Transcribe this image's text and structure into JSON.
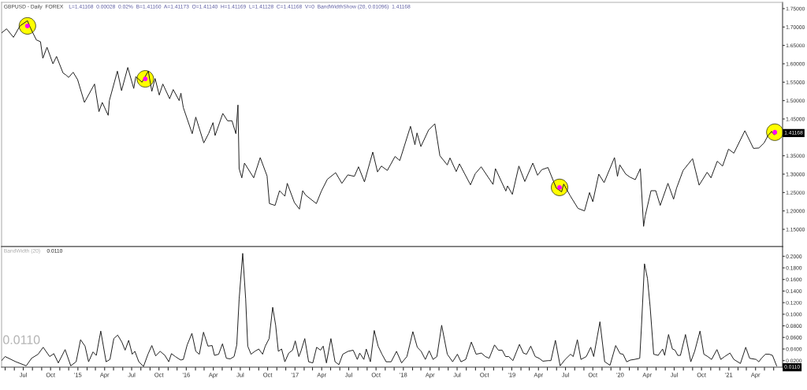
{
  "chart_data": [
    {
      "type": "line",
      "title": "GBPUSD - Daily  FOREX",
      "subtitle": "L=1.41168  0.00028  0.02%  B=1.41160  A=1.41173  O=1.41140  H=1.41169  L=1.41128  C=1.41168  V=0  BandWidthShow (20, 0.01096)  1.41168",
      "series": [
        {
          "color": "#1a1a1a",
          "x": [
            "2014-04-19",
            "2014-05-06",
            "2014-05-29",
            "2014-06-20",
            "2014-07-15",
            "2014-07-25",
            "2014-08-14",
            "2014-08-28",
            "2014-09-05",
            "2014-09-19",
            "2014-10-09",
            "2014-10-21",
            "2014-11-12",
            "2014-11-21",
            "2014-12-01",
            "2014-12-16",
            "2014-12-31",
            "2015-01-23",
            "2015-02-26",
            "2015-03-13",
            "2015-03-24",
            "2015-04-13",
            "2015-04-17",
            "2015-05-14",
            "2015-05-28",
            "2015-06-18",
            "2015-07-08",
            "2015-07-15",
            "2015-08-05",
            "2015-08-26",
            "2015-09-07",
            "2015-09-18",
            "2015-10-02",
            "2015-10-14",
            "2015-11-06",
            "2015-11-18",
            "2015-12-08",
            "2015-12-14",
            "2015-12-22",
            "2016-01-21",
            "2016-02-02",
            "2016-02-29",
            "2016-03-16",
            "2016-03-31",
            "2016-04-07",
            "2016-05-03",
            "2016-05-19",
            "2016-06-03",
            "2016-06-16",
            "2016-06-23",
            "2016-06-27",
            "2016-07-06",
            "2016-07-15",
            "2016-08-15",
            "2016-09-06",
            "2016-09-29",
            "2016-10-07",
            "2016-10-26",
            "2016-11-10",
            "2016-11-28",
            "2016-12-06",
            "2016-12-30",
            "2017-01-16",
            "2017-01-27",
            "2017-02-06",
            "2017-03-14",
            "2017-03-31",
            "2017-04-20",
            "2017-05-18",
            "2017-06-08",
            "2017-06-28",
            "2017-07-20",
            "2017-08-03",
            "2017-08-23",
            "2017-09-20",
            "2017-10-06",
            "2017-10-19",
            "2017-11-08",
            "2017-12-04",
            "2017-12-20",
            "2018-01-25",
            "2018-02-09",
            "2018-02-16",
            "2018-03-01",
            "2018-03-27",
            "2018-04-17",
            "2018-05-04",
            "2018-05-29",
            "2018-06-07",
            "2018-06-28",
            "2018-07-09",
            "2018-08-15",
            "2018-08-31",
            "2018-09-20",
            "2018-10-30",
            "2018-11-07",
            "2018-12-12",
            "2018-12-18",
            "2019-01-03",
            "2019-01-25",
            "2019-02-14",
            "2019-03-13",
            "2019-03-29",
            "2019-04-12",
            "2019-05-03",
            "2019-05-31",
            "2019-06-18",
            "2019-06-25",
            "2019-07-17",
            "2019-08-12",
            "2019-09-03",
            "2019-09-20",
            "2019-10-01",
            "2019-10-21",
            "2019-11-08",
            "2019-12-13",
            "2019-12-23",
            "2019-12-31",
            "2020-01-20",
            "2020-02-03",
            "2020-02-21",
            "2020-03-09",
            "2020-03-20",
            "2020-03-25",
            "2020-04-14",
            "2020-04-30",
            "2020-05-15",
            "2020-06-10",
            "2020-06-29",
            "2020-07-09",
            "2020-07-31",
            "2020-09-01",
            "2020-09-23",
            "2020-10-20",
            "2020-11-02",
            "2020-11-23",
            "2020-12-11",
            "2020-12-31",
            "2021-01-18",
            "2021-02-24",
            "2021-03-25",
            "2021-04-12",
            "2021-04-30",
            "2021-05-13",
            "2021-05-25",
            "2021-06-03",
            "2021-06-11"
          ],
          "values": [
            1.684,
            1.695,
            1.672,
            1.703,
            1.717,
            1.698,
            1.665,
            1.66,
            1.615,
            1.645,
            1.6,
            1.62,
            1.575,
            1.57,
            1.563,
            1.577,
            1.557,
            1.495,
            1.545,
            1.47,
            1.495,
            1.46,
            1.5,
            1.58,
            1.527,
            1.59,
            1.533,
            1.565,
            1.55,
            1.58,
            1.525,
            1.56,
            1.515,
            1.545,
            1.505,
            1.53,
            1.5,
            1.52,
            1.481,
            1.41,
            1.455,
            1.385,
            1.41,
            1.44,
            1.405,
            1.465,
            1.445,
            1.445,
            1.41,
            1.488,
            1.315,
            1.29,
            1.33,
            1.29,
            1.345,
            1.295,
            1.22,
            1.215,
            1.255,
            1.24,
            1.275,
            1.223,
            1.205,
            1.255,
            1.243,
            1.22,
            1.254,
            1.286,
            1.304,
            1.275,
            1.298,
            1.294,
            1.32,
            1.279,
            1.36,
            1.306,
            1.322,
            1.31,
            1.348,
            1.337,
            1.43,
            1.38,
            1.412,
            1.375,
            1.42,
            1.437,
            1.35,
            1.325,
            1.344,
            1.307,
            1.328,
            1.271,
            1.301,
            1.32,
            1.272,
            1.315,
            1.254,
            1.268,
            1.245,
            1.322,
            1.28,
            1.33,
            1.297,
            1.312,
            1.318,
            1.262,
            1.252,
            1.273,
            1.241,
            1.207,
            1.2,
            1.25,
            1.225,
            1.3,
            1.277,
            1.345,
            1.294,
            1.325,
            1.3,
            1.292,
            1.285,
            1.315,
            1.158,
            1.185,
            1.255,
            1.255,
            1.215,
            1.275,
            1.232,
            1.262,
            1.31,
            1.342,
            1.27,
            1.305,
            1.29,
            1.335,
            1.322,
            1.368,
            1.357,
            1.418,
            1.37,
            1.371,
            1.385,
            1.405,
            1.416,
            1.407,
            1.41168
          ]
        },
        {
          "type": "scatter",
          "color": "#ffff00",
          "marker": "circle",
          "x": [
            "2014-07-15",
            "2015-08-16",
            "2019-06-11",
            "2021-06-05"
          ],
          "values": [
            1.703,
            1.559,
            1.264,
            1.414
          ]
        },
        {
          "type": "scatter",
          "color": "#ff00ff",
          "marker": "circle",
          "x": [
            "2014-07-15",
            "2015-08-16",
            "2019-06-11",
            "2021-06-05"
          ],
          "values": [
            1.703,
            1.559,
            1.264,
            1.414
          ]
        }
      ],
      "xlim": [
        "2014-04-19",
        "2021-07-01"
      ],
      "ylim": [
        1.103,
        1.767
      ],
      "yticks": [
        {
          "value": 1.15,
          "label": "1.15000"
        },
        {
          "value": 1.2,
          "label": "1.20000"
        },
        {
          "value": 1.25,
          "label": "1.25000"
        },
        {
          "value": 1.3,
          "label": "1.30000"
        },
        {
          "value": 1.35,
          "label": "1.35000"
        },
        {
          "value": 1.45,
          "label": "1.45000"
        },
        {
          "value": 1.5,
          "label": "1.50000"
        },
        {
          "value": 1.55,
          "label": "1.55000"
        },
        {
          "value": 1.6,
          "label": "1.60000"
        },
        {
          "value": 1.65,
          "label": "1.65000"
        },
        {
          "value": 1.7,
          "label": "1.70000"
        },
        {
          "value": 1.75,
          "label": "1.75000"
        }
      ],
      "tick_labels": "y",
      "annotations": [
        {
          "text": "1.41168",
          "x": "2021-06-11",
          "y": 1.41168
        }
      ]
    },
    {
      "type": "line",
      "title": "BandWidth (20)",
      "series": [
        {
          "color": "#1a1a1a",
          "x": [
            "2014-04-19",
            "2014-05-01",
            "2014-06-06",
            "2014-07-11",
            "2014-07-29",
            "2014-08-20",
            "2014-09-06",
            "2014-09-28",
            "2014-10-12",
            "2014-10-27",
            "2014-11-19",
            "2014-12-08",
            "2014-12-26",
            "2015-01-10",
            "2015-01-25",
            "2015-02-06",
            "2015-02-21",
            "2015-03-04",
            "2015-03-19",
            "2015-04-06",
            "2015-04-19",
            "2015-05-02",
            "2015-05-15",
            "2015-05-29",
            "2015-06-09",
            "2015-06-21",
            "2015-07-03",
            "2015-07-12",
            "2015-07-25",
            "2015-08-10",
            "2015-08-25",
            "2015-09-07",
            "2015-09-20",
            "2015-10-05",
            "2015-10-21",
            "2015-11-03",
            "2015-11-12",
            "2015-11-25",
            "2015-12-13",
            "2015-12-22",
            "2016-01-04",
            "2016-01-20",
            "2016-02-02",
            "2016-02-14",
            "2016-02-28",
            "2016-03-14",
            "2016-03-28",
            "2016-04-05",
            "2016-04-19",
            "2016-05-02",
            "2016-05-15",
            "2016-05-28",
            "2016-06-10",
            "2016-06-19",
            "2016-06-27",
            "2016-07-09",
            "2016-07-19",
            "2016-07-26",
            "2016-08-06",
            "2016-08-19",
            "2016-09-01",
            "2016-09-14",
            "2016-09-23",
            "2016-10-06",
            "2016-10-18",
            "2016-10-28",
            "2016-11-06",
            "2016-11-17",
            "2016-11-28",
            "2016-12-11",
            "2016-12-24",
            "2017-01-02",
            "2017-01-14",
            "2017-01-21",
            "2017-02-03",
            "2017-02-16",
            "2017-03-02",
            "2017-03-15",
            "2017-03-28",
            "2017-04-06",
            "2017-04-17",
            "2017-05-02",
            "2017-05-16",
            "2017-05-29",
            "2017-06-11",
            "2017-06-29",
            "2017-07-16",
            "2017-07-30",
            "2017-08-07",
            "2017-08-21",
            "2017-08-29",
            "2017-09-12",
            "2017-09-25",
            "2017-10-08",
            "2017-10-21",
            "2017-11-04",
            "2017-11-21",
            "2017-12-09",
            "2017-12-26",
            "2018-01-13",
            "2018-02-02",
            "2018-02-17",
            "2018-03-02",
            "2018-03-16",
            "2018-03-29",
            "2018-04-11",
            "2018-04-24",
            "2018-05-10",
            "2018-05-29",
            "2018-06-16",
            "2018-07-02",
            "2018-07-14",
            "2018-07-30",
            "2018-08-18",
            "2018-09-03",
            "2018-09-21",
            "2018-10-04",
            "2018-10-17",
            "2018-11-04",
            "2018-11-17",
            "2018-11-30",
            "2018-12-11",
            "2018-12-22",
            "2019-01-05",
            "2019-01-27",
            "2019-02-09",
            "2019-02-20",
            "2019-03-06",
            "2019-03-21",
            "2019-04-03",
            "2019-04-16",
            "2019-05-04",
            "2019-05-13",
            "2019-05-28",
            "2019-06-13",
            "2019-06-30",
            "2019-07-18",
            "2019-07-27",
            "2019-08-10",
            "2019-08-22",
            "2019-09-09",
            "2019-09-24",
            "2019-10-04",
            "2019-10-25",
            "2019-11-10",
            "2019-11-28",
            "2019-12-17",
            "2020-01-01",
            "2020-01-11",
            "2020-01-23",
            "2020-02-05",
            "2020-02-18",
            "2020-03-07",
            "2020-03-13",
            "2020-03-23",
            "2020-04-02",
            "2020-04-11",
            "2020-04-23",
            "2020-05-08",
            "2020-05-23",
            "2020-05-30",
            "2020-06-12",
            "2020-06-25",
            "2020-07-04",
            "2020-07-13",
            "2020-07-22",
            "2020-08-08",
            "2020-08-26",
            "2020-09-08",
            "2020-09-26",
            "2020-10-09",
            "2020-10-22",
            "2020-11-04",
            "2020-11-22",
            "2020-12-05",
            "2020-12-18",
            "2021-01-05",
            "2021-01-18",
            "2021-02-09",
            "2021-02-27",
            "2021-03-12",
            "2021-04-03",
            "2021-04-12",
            "2021-04-21",
            "2021-05-04",
            "2021-05-17",
            "2021-05-28",
            "2021-06-11"
          ],
          "values": [
            0.02,
            0.027,
            0.018,
            0.011,
            0.024,
            0.031,
            0.043,
            0.027,
            0.032,
            0.016,
            0.039,
            0.011,
            0.018,
            0.056,
            0.045,
            0.018,
            0.035,
            0.029,
            0.071,
            0.018,
            0.022,
            0.058,
            0.064,
            0.052,
            0.038,
            0.055,
            0.031,
            0.036,
            0.018,
            0.01,
            0.031,
            0.046,
            0.028,
            0.036,
            0.029,
            0.018,
            0.032,
            0.027,
            0.021,
            0.022,
            0.047,
            0.067,
            0.036,
            0.031,
            0.069,
            0.045,
            0.046,
            0.029,
            0.031,
            0.049,
            0.024,
            0.023,
            0.027,
            0.047,
            0.126,
            0.205,
            0.126,
            0.045,
            0.031,
            0.036,
            0.04,
            0.031,
            0.045,
            0.058,
            0.112,
            0.081,
            0.036,
            0.04,
            0.018,
            0.033,
            0.038,
            0.054,
            0.027,
            0.036,
            0.058,
            0.018,
            0.016,
            0.043,
            0.038,
            0.045,
            0.016,
            0.058,
            0.018,
            0.013,
            0.031,
            0.036,
            0.038,
            0.022,
            0.033,
            0.022,
            0.04,
            0.018,
            0.072,
            0.045,
            0.031,
            0.018,
            0.018,
            0.036,
            0.016,
            0.027,
            0.07,
            0.043,
            0.036,
            0.022,
            0.037,
            0.022,
            0.027,
            0.081,
            0.031,
            0.018,
            0.031,
            0.018,
            0.022,
            0.052,
            0.031,
            0.033,
            0.027,
            0.024,
            0.047,
            0.038,
            0.038,
            0.027,
            0.027,
            0.02,
            0.048,
            0.033,
            0.031,
            0.045,
            0.027,
            0.024,
            0.019,
            0.02,
            0.02,
            0.055,
            0.011,
            0.022,
            0.031,
            0.027,
            0.056,
            0.022,
            0.027,
            0.043,
            0.027,
            0.087,
            0.018,
            0.012,
            0.046,
            0.032,
            0.031,
            0.018,
            0.021,
            0.022,
            0.024,
            0.081,
            0.187,
            0.162,
            0.113,
            0.031,
            0.029,
            0.04,
            0.029,
            0.065,
            0.04,
            0.038,
            0.029,
            0.029,
            0.065,
            0.018,
            0.036,
            0.071,
            0.031,
            0.027,
            0.022,
            0.039,
            0.022,
            0.027,
            0.033,
            0.022,
            0.015,
            0.043,
            0.024,
            0.022,
            0.018,
            0.024,
            0.031,
            0.031,
            0.029,
            0.011
          ]
        }
      ],
      "xlim": [
        "2014-04-19",
        "2021-07-01"
      ],
      "xticks": [
        {
          "value": "2014-05-01",
          "label": null
        },
        {
          "value": "2014-06-01",
          "label": null
        },
        {
          "value": "2014-07-01",
          "label": "Jul"
        },
        {
          "value": "2014-08-01",
          "label": null
        },
        {
          "value": "2014-09-01",
          "label": null
        },
        {
          "value": "2014-10-01",
          "label": "Oct"
        },
        {
          "value": "2014-11-01",
          "label": null
        },
        {
          "value": "2014-12-01",
          "label": null
        },
        {
          "value": "2015-01-01",
          "label": "'15"
        },
        {
          "value": "2015-02-01",
          "label": null
        },
        {
          "value": "2015-03-01",
          "label": null
        },
        {
          "value": "2015-04-01",
          "label": "Apr"
        },
        {
          "value": "2015-05-01",
          "label": null
        },
        {
          "value": "2015-06-01",
          "label": null
        },
        {
          "value": "2015-07-01",
          "label": "Jul"
        },
        {
          "value": "2015-08-01",
          "label": null
        },
        {
          "value": "2015-09-01",
          "label": null
        },
        {
          "value": "2015-10-01",
          "label": "Oct"
        },
        {
          "value": "2015-11-01",
          "label": null
        },
        {
          "value": "2015-12-01",
          "label": null
        },
        {
          "value": "2016-01-01",
          "label": "'16"
        },
        {
          "value": "2016-02-01",
          "label": null
        },
        {
          "value": "2016-03-01",
          "label": null
        },
        {
          "value": "2016-04-01",
          "label": "Apr"
        },
        {
          "value": "2016-05-01",
          "label": null
        },
        {
          "value": "2016-06-01",
          "label": null
        },
        {
          "value": "2016-07-01",
          "label": "Jul"
        },
        {
          "value": "2016-08-01",
          "label": null
        },
        {
          "value": "2016-09-01",
          "label": null
        },
        {
          "value": "2016-10-01",
          "label": "Oct"
        },
        {
          "value": "2016-11-01",
          "label": null
        },
        {
          "value": "2016-12-01",
          "label": null
        },
        {
          "value": "2017-01-01",
          "label": "'17"
        },
        {
          "value": "2017-02-01",
          "label": null
        },
        {
          "value": "2017-03-01",
          "label": null
        },
        {
          "value": "2017-04-01",
          "label": "Apr"
        },
        {
          "value": "2017-05-01",
          "label": null
        },
        {
          "value": "2017-06-01",
          "label": null
        },
        {
          "value": "2017-07-01",
          "label": "Jul"
        },
        {
          "value": "2017-08-01",
          "label": null
        },
        {
          "value": "2017-09-01",
          "label": null
        },
        {
          "value": "2017-10-01",
          "label": "Oct"
        },
        {
          "value": "2017-11-01",
          "label": null
        },
        {
          "value": "2017-12-01",
          "label": null
        },
        {
          "value": "2018-01-01",
          "label": "'18"
        },
        {
          "value": "2018-02-01",
          "label": null
        },
        {
          "value": "2018-03-01",
          "label": null
        },
        {
          "value": "2018-04-01",
          "label": "Apr"
        },
        {
          "value": "2018-05-01",
          "label": null
        },
        {
          "value": "2018-06-01",
          "label": null
        },
        {
          "value": "2018-07-01",
          "label": "Jul"
        },
        {
          "value": "2018-08-01",
          "label": null
        },
        {
          "value": "2018-09-01",
          "label": null
        },
        {
          "value": "2018-10-01",
          "label": "Oct"
        },
        {
          "value": "2018-11-01",
          "label": null
        },
        {
          "value": "2018-12-01",
          "label": null
        },
        {
          "value": "2019-01-01",
          "label": "'19"
        },
        {
          "value": "2019-02-01",
          "label": null
        },
        {
          "value": "2019-03-01",
          "label": null
        },
        {
          "value": "2019-04-01",
          "label": "Apr"
        },
        {
          "value": "2019-05-01",
          "label": null
        },
        {
          "value": "2019-06-01",
          "label": null
        },
        {
          "value": "2019-07-01",
          "label": "Jul"
        },
        {
          "value": "2019-08-01",
          "label": null
        },
        {
          "value": "2019-09-01",
          "label": null
        },
        {
          "value": "2019-10-01",
          "label": "Oct"
        },
        {
          "value": "2019-11-01",
          "label": null
        },
        {
          "value": "2019-12-01",
          "label": null
        },
        {
          "value": "2020-01-01",
          "label": "'20"
        },
        {
          "value": "2020-02-01",
          "label": null
        },
        {
          "value": "2020-03-01",
          "label": null
        },
        {
          "value": "2020-04-01",
          "label": "Apr"
        },
        {
          "value": "2020-05-01",
          "label": null
        },
        {
          "value": "2020-06-01",
          "label": null
        },
        {
          "value": "2020-07-01",
          "label": "Jul"
        },
        {
          "value": "2020-08-01",
          "label": null
        },
        {
          "value": "2020-09-01",
          "label": null
        },
        {
          "value": "2020-10-01",
          "label": "Oct"
        },
        {
          "value": "2020-11-01",
          "label": null
        },
        {
          "value": "2020-12-01",
          "label": null
        },
        {
          "value": "2021-01-01",
          "label": "'21"
        },
        {
          "value": "2021-02-01",
          "label": null
        },
        {
          "value": "2021-03-01",
          "label": null
        },
        {
          "value": "2021-04-01",
          "label": "Apr"
        },
        {
          "value": "2021-05-01",
          "label": null
        },
        {
          "value": "2021-06-01",
          "label": null
        }
      ],
      "ylim": [
        0.0087,
        0.2167
      ],
      "yticks": [
        {
          "value": 0.02,
          "label": "0.0200"
        },
        {
          "value": 0.04,
          "label": "0.0400"
        },
        {
          "value": 0.06,
          "label": "0.0600"
        },
        {
          "value": 0.08,
          "label": "0.0800"
        },
        {
          "value": 0.1,
          "label": "0.1000"
        },
        {
          "value": 0.12,
          "label": "0.1200"
        },
        {
          "value": 0.14,
          "label": "0.1400"
        },
        {
          "value": 0.16,
          "label": "0.1600"
        },
        {
          "value": 0.18,
          "label": "0.1800"
        },
        {
          "value": 0.2,
          "label": "0.2000"
        }
      ],
      "annotations": [
        "0.0110",
        "0.0110",
        {
          "text": "0.0110",
          "x": "2021-06-11",
          "y": 0.011
        }
      ]
    }
  ]
}
